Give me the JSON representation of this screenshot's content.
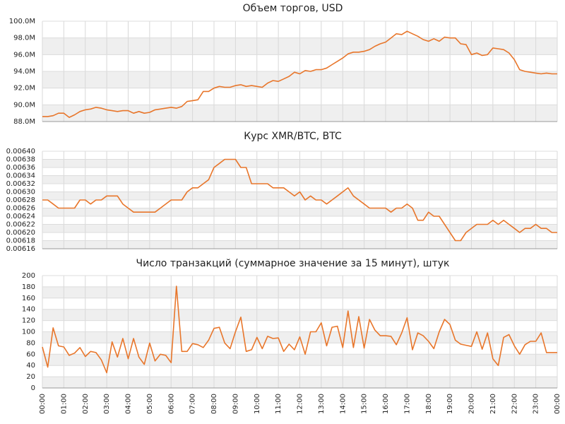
{
  "chart_data": [
    {
      "type": "line",
      "title": "Объем торгов, USD",
      "color": "#e8762b",
      "grid": true,
      "x": [
        0,
        0.25,
        0.5,
        0.75,
        1,
        1.25,
        1.5,
        1.75,
        2,
        2.25,
        2.5,
        2.75,
        3,
        3.25,
        3.5,
        3.75,
        4,
        4.25,
        4.5,
        4.75,
        5,
        5.25,
        5.5,
        5.75,
        6,
        6.25,
        6.5,
        6.75,
        7,
        7.25,
        7.5,
        7.75,
        8,
        8.25,
        8.5,
        8.75,
        9,
        9.25,
        9.5,
        9.75,
        10,
        10.25,
        10.5,
        10.75,
        11,
        11.25,
        11.5,
        11.75,
        12,
        12.25,
        12.5,
        12.75,
        13,
        13.25,
        13.5,
        13.75,
        14,
        14.25,
        14.5,
        14.75,
        15,
        15.25,
        15.5,
        15.75,
        16,
        16.25,
        16.5,
        16.75,
        17,
        17.25,
        17.5,
        17.75,
        18,
        18.25,
        18.5,
        18.75,
        19,
        19.25,
        19.5,
        19.75,
        20,
        20.25,
        20.5,
        20.75,
        21,
        21.25,
        21.5,
        21.75,
        22,
        22.25,
        22.5,
        22.75,
        23,
        23.25,
        23.5,
        23.75,
        24
      ],
      "values": [
        88.6,
        88.6,
        88.7,
        89.0,
        89.0,
        88.5,
        88.8,
        89.2,
        89.4,
        89.5,
        89.7,
        89.6,
        89.4,
        89.3,
        89.2,
        89.3,
        89.3,
        89.0,
        89.2,
        89.0,
        89.1,
        89.4,
        89.5,
        89.6,
        89.7,
        89.6,
        89.8,
        90.4,
        90.5,
        90.6,
        91.6,
        91.6,
        92.0,
        92.2,
        92.1,
        92.1,
        92.3,
        92.4,
        92.2,
        92.3,
        92.2,
        92.1,
        92.6,
        92.9,
        92.8,
        93.1,
        93.4,
        93.9,
        93.7,
        94.1,
        94.0,
        94.2,
        94.2,
        94.4,
        94.8,
        95.2,
        95.6,
        96.1,
        96.3,
        96.3,
        96.4,
        96.6,
        97.0,
        97.3,
        97.5,
        98.0,
        98.5,
        98.4,
        98.8,
        98.5,
        98.2,
        97.8,
        97.6,
        97.9,
        97.6,
        98.1,
        98.0,
        98.0,
        97.3,
        97.2,
        96.0,
        96.2,
        95.9,
        96.0,
        96.8,
        96.7,
        96.6,
        96.2,
        95.4,
        94.2,
        94.0,
        93.9,
        93.8,
        93.7,
        93.8,
        93.7,
        93.7
      ],
      "xlim": [
        0,
        24
      ],
      "xticks": [
        0,
        1,
        2,
        3,
        4,
        5,
        6,
        7,
        8,
        9,
        10,
        11,
        12,
        13,
        14,
        15,
        16,
        17,
        18,
        19,
        20,
        21,
        22,
        23,
        24
      ],
      "ylim": [
        88,
        100
      ],
      "yticks": [
        {
          "value": 88,
          "label": "88.0M"
        },
        {
          "value": 90,
          "label": "90.0M"
        },
        {
          "value": 92,
          "label": "92.0M"
        },
        {
          "value": 94,
          "label": "94.0M"
        },
        {
          "value": 96,
          "label": "96.0M"
        },
        {
          "value": 98,
          "label": "98.0M"
        },
        {
          "value": 100,
          "label": "100.0M"
        }
      ]
    },
    {
      "type": "line",
      "title": "Курс XMR/BTC, BTC",
      "color": "#e8762b",
      "grid": true,
      "x": [
        0,
        0.25,
        0.5,
        0.75,
        1,
        1.25,
        1.5,
        1.75,
        2,
        2.25,
        2.5,
        2.75,
        3,
        3.25,
        3.5,
        3.75,
        4,
        4.25,
        4.5,
        4.75,
        5,
        5.25,
        5.5,
        5.75,
        6,
        6.25,
        6.5,
        6.75,
        7,
        7.25,
        7.5,
        7.75,
        8,
        8.25,
        8.5,
        8.75,
        9,
        9.25,
        9.5,
        9.75,
        10,
        10.25,
        10.5,
        10.75,
        11,
        11.25,
        11.5,
        11.75,
        12,
        12.25,
        12.5,
        12.75,
        13,
        13.25,
        13.5,
        13.75,
        14,
        14.25,
        14.5,
        14.75,
        15,
        15.25,
        15.5,
        15.75,
        16,
        16.25,
        16.5,
        16.75,
        17,
        17.25,
        17.5,
        17.75,
        18,
        18.25,
        18.5,
        18.75,
        19,
        19.25,
        19.5,
        19.75,
        20,
        20.25,
        20.5,
        20.75,
        21,
        21.25,
        21.5,
        21.75,
        22,
        22.25,
        22.5,
        22.75,
        23,
        23.25,
        23.5,
        23.75,
        24
      ],
      "values": [
        0.00628,
        0.00628,
        0.00627,
        0.00626,
        0.00626,
        0.00626,
        0.00626,
        0.00628,
        0.00628,
        0.00627,
        0.00628,
        0.00628,
        0.00629,
        0.00629,
        0.00629,
        0.00627,
        0.00626,
        0.00625,
        0.00625,
        0.00625,
        0.00625,
        0.00625,
        0.00626,
        0.00627,
        0.00628,
        0.00628,
        0.00628,
        0.0063,
        0.00631,
        0.00631,
        0.00632,
        0.00633,
        0.00636,
        0.00637,
        0.00638,
        0.00638,
        0.00638,
        0.00636,
        0.00636,
        0.00632,
        0.00632,
        0.00632,
        0.00632,
        0.00631,
        0.00631,
        0.00631,
        0.0063,
        0.00629,
        0.0063,
        0.00628,
        0.00629,
        0.00628,
        0.00628,
        0.00627,
        0.00628,
        0.00629,
        0.0063,
        0.00631,
        0.00629,
        0.00628,
        0.00627,
        0.00626,
        0.00626,
        0.00626,
        0.00626,
        0.00625,
        0.00626,
        0.00626,
        0.00627,
        0.00626,
        0.00623,
        0.00623,
        0.00625,
        0.00624,
        0.00624,
        0.00622,
        0.0062,
        0.00618,
        0.00618,
        0.0062,
        0.00621,
        0.00622,
        0.00622,
        0.00622,
        0.00623,
        0.00622,
        0.00623,
        0.00622,
        0.00621,
        0.0062,
        0.00621,
        0.00621,
        0.00622,
        0.00621,
        0.00621,
        0.0062,
        0.0062
      ],
      "xlim": [
        0,
        24
      ],
      "xticks": [
        0,
        1,
        2,
        3,
        4,
        5,
        6,
        7,
        8,
        9,
        10,
        11,
        12,
        13,
        14,
        15,
        16,
        17,
        18,
        19,
        20,
        21,
        22,
        23,
        24
      ],
      "ylim": [
        0.00616,
        0.0064
      ],
      "yticks": [
        0.00616,
        0.00618,
        {
          "value": 0.0062,
          "label": "0.00620"
        },
        0.00622,
        0.00624,
        0.00626,
        0.00628,
        {
          "value": 0.0063,
          "label": "0.00630"
        },
        0.00632,
        0.00634,
        0.00636,
        0.00638,
        {
          "value": 0.0064,
          "label": "0.00640"
        }
      ]
    },
    {
      "type": "line",
      "title": "Число транзакций (суммарное значение за 15 минут), штук",
      "color": "#e8762b",
      "grid": true,
      "x": [
        0,
        0.25,
        0.5,
        0.75,
        1,
        1.25,
        1.5,
        1.75,
        2,
        2.25,
        2.5,
        2.75,
        3,
        3.25,
        3.5,
        3.75,
        4,
        4.25,
        4.5,
        4.75,
        5,
        5.25,
        5.5,
        5.75,
        6,
        6.25,
        6.5,
        6.75,
        7,
        7.25,
        7.5,
        7.75,
        8,
        8.25,
        8.5,
        8.75,
        9,
        9.25,
        9.5,
        9.75,
        10,
        10.25,
        10.5,
        10.75,
        11,
        11.25,
        11.5,
        11.75,
        12,
        12.25,
        12.5,
        12.75,
        13,
        13.25,
        13.5,
        13.75,
        14,
        14.25,
        14.5,
        14.75,
        15,
        15.25,
        15.5,
        15.75,
        16,
        16.25,
        16.5,
        16.75,
        17,
        17.25,
        17.5,
        17.75,
        18,
        18.25,
        18.5,
        18.75,
        19,
        19.25,
        19.5,
        19.75,
        20,
        20.25,
        20.5,
        20.75,
        21,
        21.25,
        21.5,
        21.75,
        22,
        22.25,
        22.5,
        22.75,
        23,
        23.25,
        23.5,
        23.75,
        24
      ],
      "values": [
        73,
        37,
        107,
        75,
        73,
        58,
        62,
        72,
        56,
        65,
        63,
        50,
        27,
        82,
        55,
        88,
        52,
        88,
        55,
        42,
        80,
        48,
        60,
        58,
        45,
        181,
        65,
        65,
        79,
        77,
        72,
        85,
        106,
        108,
        80,
        70,
        100,
        126,
        65,
        68,
        90,
        70,
        92,
        88,
        89,
        65,
        78,
        68,
        91,
        60,
        100,
        100,
        116,
        75,
        108,
        110,
        72,
        137,
        72,
        127,
        71,
        122,
        103,
        93,
        93,
        92,
        77,
        98,
        125,
        68,
        98,
        93,
        83,
        70,
        100,
        122,
        113,
        85,
        78,
        76,
        74,
        100,
        69,
        98,
        52,
        40,
        90,
        95,
        75,
        60,
        77,
        83,
        83,
        98,
        63,
        63,
        63
      ],
      "xlim": [
        0,
        24
      ],
      "xticks": [
        {
          "value": 0,
          "label": "00:00"
        },
        {
          "value": 1,
          "label": "01:00"
        },
        {
          "value": 2,
          "label": "02:00"
        },
        {
          "value": 3,
          "label": "03:00"
        },
        {
          "value": 4,
          "label": "04:00"
        },
        {
          "value": 5,
          "label": "05:00"
        },
        {
          "value": 6,
          "label": "06:00"
        },
        {
          "value": 7,
          "label": "07:00"
        },
        {
          "value": 8,
          "label": "08:00"
        },
        {
          "value": 9,
          "label": "09:00"
        },
        {
          "value": 10,
          "label": "10:00"
        },
        {
          "value": 11,
          "label": "11:00"
        },
        {
          "value": 12,
          "label": "12:00"
        },
        {
          "value": 13,
          "label": "13:00"
        },
        {
          "value": 14,
          "label": "14:00"
        },
        {
          "value": 15,
          "label": "15:00"
        },
        {
          "value": 16,
          "label": "16:00"
        },
        {
          "value": 17,
          "label": "17:00"
        },
        {
          "value": 18,
          "label": "18:00"
        },
        {
          "value": 19,
          "label": "19:00"
        },
        {
          "value": 20,
          "label": "20:00"
        },
        {
          "value": 21,
          "label": "21:00"
        },
        {
          "value": 22,
          "label": "22:00"
        },
        {
          "value": 23,
          "label": "23:00"
        },
        {
          "value": 24,
          "label": "00:00"
        }
      ],
      "ylim": [
        0,
        200
      ],
      "yticks": [
        0,
        20,
        40,
        60,
        80,
        100,
        120,
        140,
        160,
        180,
        200
      ]
    }
  ]
}
